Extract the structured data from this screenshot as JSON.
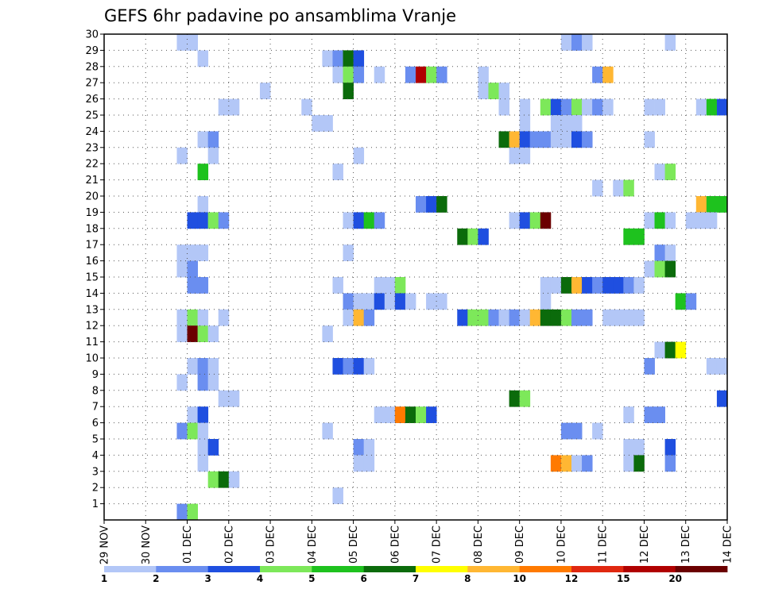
{
  "chart_data": {
    "type": "heatmap",
    "title": "GEFS 6hr padavine po ansamblima Vranje",
    "x_labels": [
      "29 NOV",
      "30 NOV",
      "01 DEC",
      "02 DEC",
      "03 DEC",
      "04 DEC",
      "05 DEC",
      "06 DEC",
      "07 DEC",
      "08 DEC",
      "09 DEC",
      "10 DEC",
      "11 DEC",
      "12 DEC",
      "13 DEC",
      "14 DEC"
    ],
    "y_labels": [
      "1",
      "2",
      "3",
      "4",
      "5",
      "6",
      "7",
      "8",
      "9",
      "10",
      "11",
      "12",
      "13",
      "14",
      "15",
      "16",
      "17",
      "18",
      "19",
      "20",
      "21",
      "22",
      "23",
      "24",
      "25",
      "26",
      "27",
      "28",
      "29",
      "30"
    ],
    "x_unit": "6-hour step (4 per day) from 29 NOV 00Z",
    "xlim": [
      0,
      60
    ],
    "ylim": [
      0,
      30
    ],
    "grid": true,
    "colorbar": {
      "levels": [
        "1",
        "2",
        "3",
        "4",
        "5",
        "6",
        "7",
        "8",
        "10",
        "12",
        "15",
        "20"
      ],
      "colors": [
        "#b3c7f7",
        "#6a8ef0",
        "#1f4fe0",
        "#7de85a",
        "#1ec21e",
        "#0b6b0b",
        "#ffff00",
        "#ffb733",
        "#ff7a00",
        "#e02810",
        "#b00000",
        "#6b0000"
      ]
    },
    "cells": [
      {
        "x": 8,
        "y": 30,
        "v": 1
      },
      {
        "x": 9,
        "y": 30,
        "v": 1
      },
      {
        "x": 45,
        "y": 30,
        "v": 1
      },
      {
        "x": 46,
        "y": 30,
        "v": 2
      },
      {
        "x": 47,
        "y": 30,
        "v": 1
      },
      {
        "x": 55,
        "y": 30,
        "v": 1
      },
      {
        "x": 10,
        "y": 29,
        "v": 1
      },
      {
        "x": 22,
        "y": 29,
        "v": 1
      },
      {
        "x": 23,
        "y": 29,
        "v": 2
      },
      {
        "x": 24,
        "y": 29,
        "v": 6
      },
      {
        "x": 25,
        "y": 29,
        "v": 3
      },
      {
        "x": 23,
        "y": 28,
        "v": 1
      },
      {
        "x": 24,
        "y": 28,
        "v": 4
      },
      {
        "x": 25,
        "y": 28,
        "v": 2
      },
      {
        "x": 27,
        "y": 28,
        "v": 1
      },
      {
        "x": 30,
        "y": 28,
        "v": 2
      },
      {
        "x": 31,
        "y": 28,
        "v": 15
      },
      {
        "x": 32,
        "y": 28,
        "v": 4
      },
      {
        "x": 33,
        "y": 28,
        "v": 2
      },
      {
        "x": 37,
        "y": 28,
        "v": 1
      },
      {
        "x": 48,
        "y": 28,
        "v": 2
      },
      {
        "x": 49,
        "y": 28,
        "v": 8
      },
      {
        "x": 16,
        "y": 27,
        "v": 1
      },
      {
        "x": 24,
        "y": 27,
        "v": 6
      },
      {
        "x": 37,
        "y": 27,
        "v": 1
      },
      {
        "x": 38,
        "y": 27,
        "v": 4
      },
      {
        "x": 39,
        "y": 27,
        "v": 1
      },
      {
        "x": 12,
        "y": 26,
        "v": 1
      },
      {
        "x": 13,
        "y": 26,
        "v": 1
      },
      {
        "x": 20,
        "y": 26,
        "v": 1
      },
      {
        "x": 39,
        "y": 26,
        "v": 1
      },
      {
        "x": 41,
        "y": 26,
        "v": 1
      },
      {
        "x": 43,
        "y": 26,
        "v": 4
      },
      {
        "x": 44,
        "y": 26,
        "v": 3
      },
      {
        "x": 45,
        "y": 26,
        "v": 2
      },
      {
        "x": 46,
        "y": 26,
        "v": 4
      },
      {
        "x": 47,
        "y": 26,
        "v": 1
      },
      {
        "x": 48,
        "y": 26,
        "v": 2
      },
      {
        "x": 49,
        "y": 26,
        "v": 1
      },
      {
        "x": 53,
        "y": 26,
        "v": 1
      },
      {
        "x": 54,
        "y": 26,
        "v": 1
      },
      {
        "x": 58,
        "y": 26,
        "v": 1
      },
      {
        "x": 59,
        "y": 26,
        "v": 5
      },
      {
        "x": 60,
        "y": 26,
        "v": 3
      },
      {
        "x": 21,
        "y": 25,
        "v": 1
      },
      {
        "x": 22,
        "y": 25,
        "v": 1
      },
      {
        "x": 41,
        "y": 25,
        "v": 1
      },
      {
        "x": 44,
        "y": 25,
        "v": 1
      },
      {
        "x": 45,
        "y": 25,
        "v": 1
      },
      {
        "x": 46,
        "y": 25,
        "v": 1
      },
      {
        "x": 10,
        "y": 24,
        "v": 1
      },
      {
        "x": 11,
        "y": 24,
        "v": 2
      },
      {
        "x": 39,
        "y": 24,
        "v": 6
      },
      {
        "x": 40,
        "y": 24,
        "v": 8
      },
      {
        "x": 41,
        "y": 24,
        "v": 3
      },
      {
        "x": 42,
        "y": 24,
        "v": 2
      },
      {
        "x": 43,
        "y": 24,
        "v": 2
      },
      {
        "x": 44,
        "y": 24,
        "v": 1
      },
      {
        "x": 45,
        "y": 24,
        "v": 1
      },
      {
        "x": 46,
        "y": 24,
        "v": 3
      },
      {
        "x": 47,
        "y": 24,
        "v": 2
      },
      {
        "x": 53,
        "y": 24,
        "v": 1
      },
      {
        "x": 8,
        "y": 23,
        "v": 1
      },
      {
        "x": 11,
        "y": 23,
        "v": 1
      },
      {
        "x": 25,
        "y": 23,
        "v": 1
      },
      {
        "x": 40,
        "y": 23,
        "v": 1
      },
      {
        "x": 41,
        "y": 23,
        "v": 1
      },
      {
        "x": 10,
        "y": 22,
        "v": 5
      },
      {
        "x": 23,
        "y": 22,
        "v": 1
      },
      {
        "x": 54,
        "y": 22,
        "v": 1
      },
      {
        "x": 55,
        "y": 22,
        "v": 4
      },
      {
        "x": 48,
        "y": 21,
        "v": 1
      },
      {
        "x": 50,
        "y": 21,
        "v": 1
      },
      {
        "x": 51,
        "y": 21,
        "v": 4
      },
      {
        "x": 10,
        "y": 20,
        "v": 1
      },
      {
        "x": 31,
        "y": 20,
        "v": 2
      },
      {
        "x": 32,
        "y": 20,
        "v": 3
      },
      {
        "x": 33,
        "y": 20,
        "v": 6
      },
      {
        "x": 58,
        "y": 20,
        "v": 8
      },
      {
        "x": 59,
        "y": 20,
        "v": 5
      },
      {
        "x": 60,
        "y": 20,
        "v": 5
      },
      {
        "x": 9,
        "y": 19,
        "v": 3
      },
      {
        "x": 10,
        "y": 19,
        "v": 3
      },
      {
        "x": 11,
        "y": 19,
        "v": 4
      },
      {
        "x": 12,
        "y": 19,
        "v": 2
      },
      {
        "x": 24,
        "y": 19,
        "v": 1
      },
      {
        "x": 25,
        "y": 19,
        "v": 3
      },
      {
        "x": 26,
        "y": 19,
        "v": 5
      },
      {
        "x": 27,
        "y": 19,
        "v": 2
      },
      {
        "x": 40,
        "y": 19,
        "v": 1
      },
      {
        "x": 41,
        "y": 19,
        "v": 3
      },
      {
        "x": 42,
        "y": 19,
        "v": 4
      },
      {
        "x": 43,
        "y": 19,
        "v": 20
      },
      {
        "x": 53,
        "y": 19,
        "v": 1
      },
      {
        "x": 54,
        "y": 19,
        "v": 5
      },
      {
        "x": 55,
        "y": 19,
        "v": 1
      },
      {
        "x": 57,
        "y": 19,
        "v": 1
      },
      {
        "x": 58,
        "y": 19,
        "v": 1
      },
      {
        "x": 59,
        "y": 19,
        "v": 1
      },
      {
        "x": 35,
        "y": 18,
        "v": 6
      },
      {
        "x": 36,
        "y": 18,
        "v": 4
      },
      {
        "x": 37,
        "y": 18,
        "v": 3
      },
      {
        "x": 51,
        "y": 18,
        "v": 5
      },
      {
        "x": 52,
        "y": 18,
        "v": 5
      },
      {
        "x": 8,
        "y": 17,
        "v": 1
      },
      {
        "x": 9,
        "y": 17,
        "v": 1
      },
      {
        "x": 10,
        "y": 17,
        "v": 1
      },
      {
        "x": 24,
        "y": 17,
        "v": 1
      },
      {
        "x": 54,
        "y": 17,
        "v": 2
      },
      {
        "x": 55,
        "y": 17,
        "v": 1
      },
      {
        "x": 8,
        "y": 16,
        "v": 1
      },
      {
        "x": 9,
        "y": 16,
        "v": 2
      },
      {
        "x": 53,
        "y": 16,
        "v": 1
      },
      {
        "x": 54,
        "y": 16,
        "v": 4
      },
      {
        "x": 55,
        "y": 16,
        "v": 6
      },
      {
        "x": 9,
        "y": 15,
        "v": 2
      },
      {
        "x": 10,
        "y": 15,
        "v": 2
      },
      {
        "x": 23,
        "y": 15,
        "v": 1
      },
      {
        "x": 27,
        "y": 15,
        "v": 1
      },
      {
        "x": 28,
        "y": 15,
        "v": 1
      },
      {
        "x": 29,
        "y": 15,
        "v": 4
      },
      {
        "x": 43,
        "y": 15,
        "v": 1
      },
      {
        "x": 44,
        "y": 15,
        "v": 1
      },
      {
        "x": 45,
        "y": 15,
        "v": 6
      },
      {
        "x": 46,
        "y": 15,
        "v": 8
      },
      {
        "x": 47,
        "y": 15,
        "v": 3
      },
      {
        "x": 48,
        "y": 15,
        "v": 2
      },
      {
        "x": 49,
        "y": 15,
        "v": 3
      },
      {
        "x": 50,
        "y": 15,
        "v": 3
      },
      {
        "x": 51,
        "y": 15,
        "v": 2
      },
      {
        "x": 52,
        "y": 15,
        "v": 1
      },
      {
        "x": 24,
        "y": 14,
        "v": 2
      },
      {
        "x": 25,
        "y": 14,
        "v": 1
      },
      {
        "x": 26,
        "y": 14,
        "v": 1
      },
      {
        "x": 27,
        "y": 14,
        "v": 3
      },
      {
        "x": 28,
        "y": 14,
        "v": 1
      },
      {
        "x": 29,
        "y": 14,
        "v": 3
      },
      {
        "x": 30,
        "y": 14,
        "v": 1
      },
      {
        "x": 32,
        "y": 14,
        "v": 1
      },
      {
        "x": 33,
        "y": 14,
        "v": 1
      },
      {
        "x": 43,
        "y": 14,
        "v": 1
      },
      {
        "x": 56,
        "y": 14,
        "v": 5
      },
      {
        "x": 57,
        "y": 14,
        "v": 2
      },
      {
        "x": 8,
        "y": 13,
        "v": 1
      },
      {
        "x": 9,
        "y": 13,
        "v": 4
      },
      {
        "x": 10,
        "y": 13,
        "v": 1
      },
      {
        "x": 12,
        "y": 13,
        "v": 1
      },
      {
        "x": 24,
        "y": 13,
        "v": 1
      },
      {
        "x": 25,
        "y": 13,
        "v": 8
      },
      {
        "x": 26,
        "y": 13,
        "v": 2
      },
      {
        "x": 35,
        "y": 13,
        "v": 3
      },
      {
        "x": 36,
        "y": 13,
        "v": 4
      },
      {
        "x": 37,
        "y": 13,
        "v": 4
      },
      {
        "x": 38,
        "y": 13,
        "v": 2
      },
      {
        "x": 39,
        "y": 13,
        "v": 1
      },
      {
        "x": 40,
        "y": 13,
        "v": 2
      },
      {
        "x": 41,
        "y": 13,
        "v": 1
      },
      {
        "x": 42,
        "y": 13,
        "v": 8
      },
      {
        "x": 43,
        "y": 13,
        "v": 6
      },
      {
        "x": 44,
        "y": 13,
        "v": 6
      },
      {
        "x": 45,
        "y": 13,
        "v": 4
      },
      {
        "x": 46,
        "y": 13,
        "v": 2
      },
      {
        "x": 47,
        "y": 13,
        "v": 2
      },
      {
        "x": 49,
        "y": 13,
        "v": 1
      },
      {
        "x": 50,
        "y": 13,
        "v": 1
      },
      {
        "x": 51,
        "y": 13,
        "v": 1
      },
      {
        "x": 52,
        "y": 13,
        "v": 1
      },
      {
        "x": 8,
        "y": 12,
        "v": 1
      },
      {
        "x": 9,
        "y": 12,
        "v": 20
      },
      {
        "x": 10,
        "y": 12,
        "v": 4
      },
      {
        "x": 11,
        "y": 12,
        "v": 1
      },
      {
        "x": 22,
        "y": 12,
        "v": 1
      },
      {
        "x": 54,
        "y": 11,
        "v": 1
      },
      {
        "x": 55,
        "y": 11,
        "v": 6
      },
      {
        "x": 56,
        "y": 11,
        "v": 7
      },
      {
        "x": 9,
        "y": 10,
        "v": 1
      },
      {
        "x": 10,
        "y": 10,
        "v": 2
      },
      {
        "x": 11,
        "y": 10,
        "v": 1
      },
      {
        "x": 23,
        "y": 10,
        "v": 3
      },
      {
        "x": 24,
        "y": 10,
        "v": 2
      },
      {
        "x": 25,
        "y": 10,
        "v": 3
      },
      {
        "x": 26,
        "y": 10,
        "v": 1
      },
      {
        "x": 53,
        "y": 10,
        "v": 2
      },
      {
        "x": 59,
        "y": 10,
        "v": 1
      },
      {
        "x": 60,
        "y": 10,
        "v": 1
      },
      {
        "x": 8,
        "y": 9,
        "v": 1
      },
      {
        "x": 10,
        "y": 9,
        "v": 2
      },
      {
        "x": 11,
        "y": 9,
        "v": 1
      },
      {
        "x": 12,
        "y": 8,
        "v": 1
      },
      {
        "x": 13,
        "y": 8,
        "v": 1
      },
      {
        "x": 40,
        "y": 8,
        "v": 6
      },
      {
        "x": 41,
        "y": 8,
        "v": 4
      },
      {
        "x": 60,
        "y": 8,
        "v": 3
      },
      {
        "x": 9,
        "y": 7,
        "v": 1
      },
      {
        "x": 10,
        "y": 7,
        "v": 3
      },
      {
        "x": 27,
        "y": 7,
        "v": 1
      },
      {
        "x": 28,
        "y": 7,
        "v": 1
      },
      {
        "x": 29,
        "y": 7,
        "v": 10
      },
      {
        "x": 30,
        "y": 7,
        "v": 6
      },
      {
        "x": 31,
        "y": 7,
        "v": 4
      },
      {
        "x": 32,
        "y": 7,
        "v": 3
      },
      {
        "x": 51,
        "y": 7,
        "v": 1
      },
      {
        "x": 53,
        "y": 7,
        "v": 2
      },
      {
        "x": 54,
        "y": 7,
        "v": 2
      },
      {
        "x": 8,
        "y": 6,
        "v": 2
      },
      {
        "x": 9,
        "y": 6,
        "v": 4
      },
      {
        "x": 10,
        "y": 6,
        "v": 1
      },
      {
        "x": 22,
        "y": 6,
        "v": 1
      },
      {
        "x": 45,
        "y": 6,
        "v": 2
      },
      {
        "x": 46,
        "y": 6,
        "v": 2
      },
      {
        "x": 48,
        "y": 6,
        "v": 1
      },
      {
        "x": 10,
        "y": 5,
        "v": 1
      },
      {
        "x": 11,
        "y": 5,
        "v": 3
      },
      {
        "x": 25,
        "y": 5,
        "v": 2
      },
      {
        "x": 26,
        "y": 5,
        "v": 1
      },
      {
        "x": 51,
        "y": 5,
        "v": 1
      },
      {
        "x": 52,
        "y": 5,
        "v": 1
      },
      {
        "x": 55,
        "y": 5,
        "v": 3
      },
      {
        "x": 10,
        "y": 4,
        "v": 1
      },
      {
        "x": 25,
        "y": 4,
        "v": 1
      },
      {
        "x": 26,
        "y": 4,
        "v": 1
      },
      {
        "x": 44,
        "y": 4,
        "v": 10
      },
      {
        "x": 45,
        "y": 4,
        "v": 8
      },
      {
        "x": 46,
        "y": 4,
        "v": 1
      },
      {
        "x": 47,
        "y": 4,
        "v": 2
      },
      {
        "x": 51,
        "y": 4,
        "v": 1
      },
      {
        "x": 52,
        "y": 4,
        "v": 6
      },
      {
        "x": 55,
        "y": 4,
        "v": 2
      },
      {
        "x": 11,
        "y": 3,
        "v": 4
      },
      {
        "x": 12,
        "y": 3,
        "v": 6
      },
      {
        "x": 13,
        "y": 3,
        "v": 1
      },
      {
        "x": 23,
        "y": 2,
        "v": 1
      },
      {
        "x": 8,
        "y": 1,
        "v": 2
      },
      {
        "x": 9,
        "y": 1,
        "v": 4
      }
    ]
  }
}
